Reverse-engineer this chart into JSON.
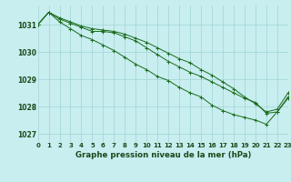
{
  "bg_color": "#c8eef0",
  "grid_color": "#a0d4d4",
  "line_color": "#1a6b1a",
  "title": "Graphe pression niveau de la mer (hPa)",
  "tick_color": "#1a4a1a",
  "xlim": [
    0,
    23
  ],
  "ylim": [
    1026.7,
    1031.7
  ],
  "yticks": [
    1027,
    1028,
    1029,
    1030,
    1031
  ],
  "xticks": [
    0,
    1,
    2,
    3,
    4,
    5,
    6,
    7,
    8,
    9,
    10,
    11,
    12,
    13,
    14,
    15,
    16,
    17,
    18,
    19,
    20,
    21,
    22,
    23
  ],
  "series1_x": [
    0,
    1,
    2,
    3,
    4,
    5,
    6,
    7,
    8,
    9,
    10,
    11,
    12,
    13,
    14,
    15,
    16,
    17,
    18,
    19,
    20,
    21,
    22,
    23
  ],
  "series1_y": [
    1031.0,
    1031.45,
    1031.2,
    1031.05,
    1030.9,
    1030.75,
    1030.75,
    1030.7,
    1030.55,
    1030.4,
    1030.15,
    1029.9,
    1029.65,
    1029.45,
    1029.25,
    1029.1,
    1028.9,
    1028.7,
    1028.5,
    1028.3,
    1028.15,
    1027.75,
    1027.8,
    1028.35
  ],
  "series2_x": [
    0,
    1,
    2,
    3,
    4,
    5,
    6,
    7,
    8,
    9,
    10,
    11,
    12,
    13,
    14,
    15,
    16,
    17,
    18,
    19,
    20,
    21,
    22,
    23
  ],
  "series2_y": [
    1031.0,
    1031.45,
    1031.1,
    1030.85,
    1030.6,
    1030.45,
    1030.25,
    1030.05,
    1029.8,
    1029.55,
    1029.35,
    1029.1,
    1028.95,
    1028.7,
    1028.5,
    1028.35,
    1028.05,
    1027.85,
    1027.7,
    1027.6,
    1027.5,
    1027.35,
    1027.8,
    1028.3
  ],
  "series3_x": [
    0,
    1,
    2,
    3,
    4,
    5,
    6,
    7,
    8,
    9,
    10,
    11,
    12,
    13,
    14,
    15,
    16,
    17,
    18,
    19,
    20,
    21,
    22,
    23
  ],
  "series3_y": [
    1031.0,
    1031.45,
    1031.25,
    1031.1,
    1030.95,
    1030.85,
    1030.8,
    1030.75,
    1030.65,
    1030.5,
    1030.35,
    1030.15,
    1029.95,
    1029.75,
    1029.6,
    1029.35,
    1029.15,
    1028.9,
    1028.65,
    1028.35,
    1028.1,
    1027.8,
    1027.9,
    1028.5
  ]
}
